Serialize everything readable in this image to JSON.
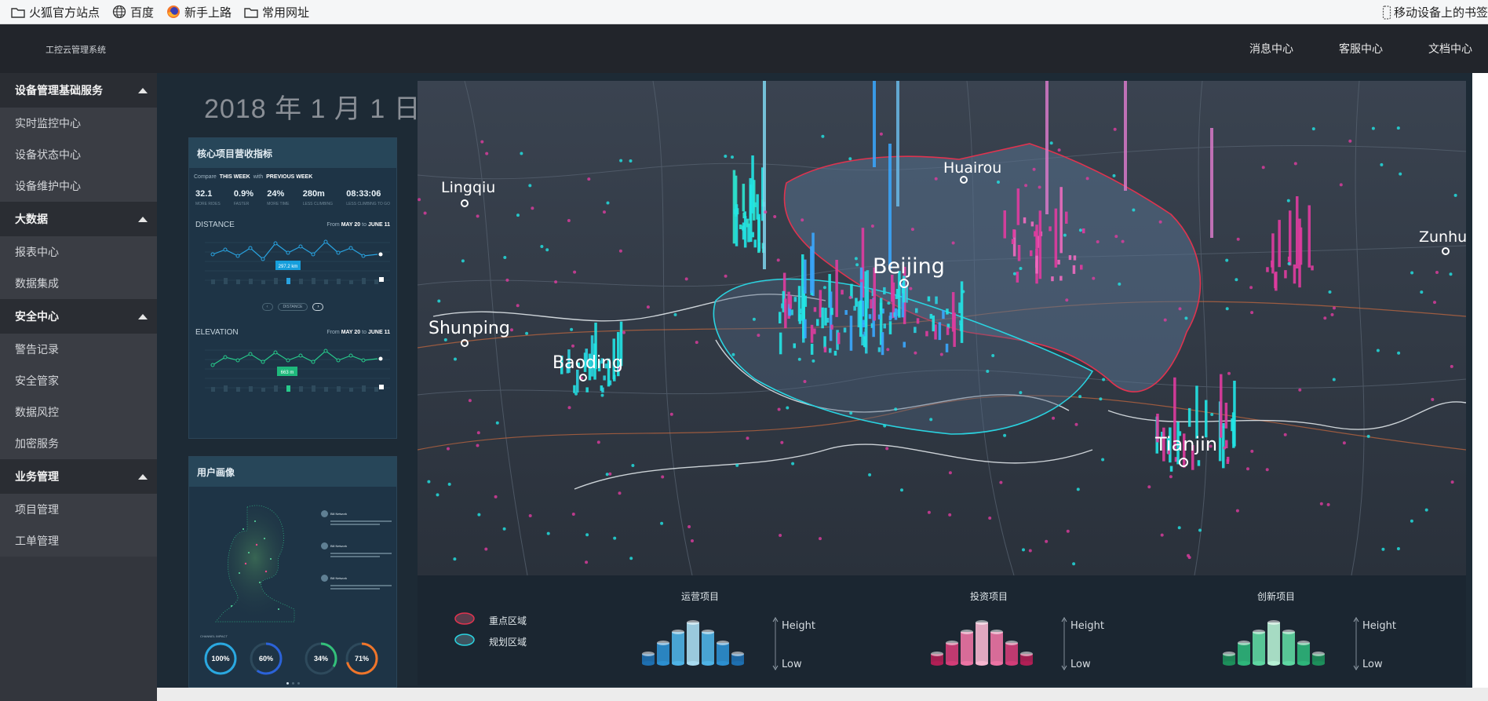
{
  "bookmarks": [
    {
      "label": "火狐官方站点",
      "icon": "folder-icon"
    },
    {
      "label": "百度",
      "icon": "globe-icon"
    },
    {
      "label": "新手上路",
      "icon": "firefox-icon"
    },
    {
      "label": "常用网址",
      "icon": "folder-icon"
    }
  ],
  "bookmarks_right": "移动设备上的书签",
  "app": {
    "title": "工控云管理系统",
    "nav": [
      "消息中心",
      "客服中心",
      "文档中心"
    ]
  },
  "sidebar": [
    {
      "group": "设备管理基础服务",
      "items": [
        "实时监控中心",
        "设备状态中心",
        "设备维护中心"
      ]
    },
    {
      "group": "大数据",
      "items": [
        "报表中心",
        "数据集成"
      ]
    },
    {
      "group": "安全中心",
      "items": [
        "警告记录",
        "安全管家",
        "数据风控",
        "加密服务"
      ]
    },
    {
      "group": "业务管理",
      "items": [
        "项目管理",
        "工单管理"
      ]
    }
  ],
  "dashboard": {
    "date": "2018 年 1 月 1 日",
    "kpi_panel": {
      "title": "核心项目营收指标",
      "compare": {
        "label": "Compare",
        "this_week": "THIS WEEK",
        "with": "with",
        "previous_week": "PREVIOUS WEEK"
      },
      "stats": [
        {
          "value": "32.1",
          "label": "MORE RIDES"
        },
        {
          "value": "0.9%",
          "label": "FASTER"
        },
        {
          "value": "24%",
          "label": "MORE TIME"
        },
        {
          "value": "280m",
          "label": "LESS CLIMBING"
        },
        {
          "value": "08:33:06",
          "label": "LESS CLIMBING TO GO"
        }
      ],
      "distance": {
        "title": "DISTANCE",
        "from_label": "From",
        "from": "MAY 20",
        "to_label": "to",
        "to": "JUNE 11",
        "callout": "297.2 km"
      },
      "elevation": {
        "title": "ELEVATION",
        "from_label": "From",
        "from": "MAY 20",
        "to_label": "to",
        "to": "JUNE 11",
        "callout": "663 m"
      },
      "pager_label": "DISTANCE"
    },
    "user_panel": {
      "title": "用户画像",
      "channel_label": "CHANNEL IMPACT",
      "rings": [
        {
          "value": "100",
          "unit": "%",
          "color": "#2aa8e0",
          "fraction": 1.0
        },
        {
          "value": "60",
          "unit": "%",
          "color": "#2b62d9",
          "fraction": 0.6
        },
        {
          "value": "34",
          "unit": "%",
          "color": "#33c07a",
          "fraction": 0.34
        },
        {
          "value": "71",
          "unit": "%",
          "color": "#f0752a",
          "fraction": 0.71
        }
      ],
      "feed_name": "Bill Network"
    },
    "map": {
      "cities": [
        "Lingqiu",
        "Huairou",
        "Beijing",
        "Zunhua",
        "Shunping",
        "Baoding",
        "Tianjin"
      ]
    },
    "legend": {
      "zones": [
        "重点区域",
        "规划区域"
      ],
      "groups": [
        {
          "title": "运营项目",
          "high": "Height",
          "low": "Low"
        },
        {
          "title": "投资项目",
          "high": "Height",
          "low": "Low"
        },
        {
          "title": "创新项目",
          "high": "Height",
          "low": "Low"
        }
      ]
    }
  }
}
